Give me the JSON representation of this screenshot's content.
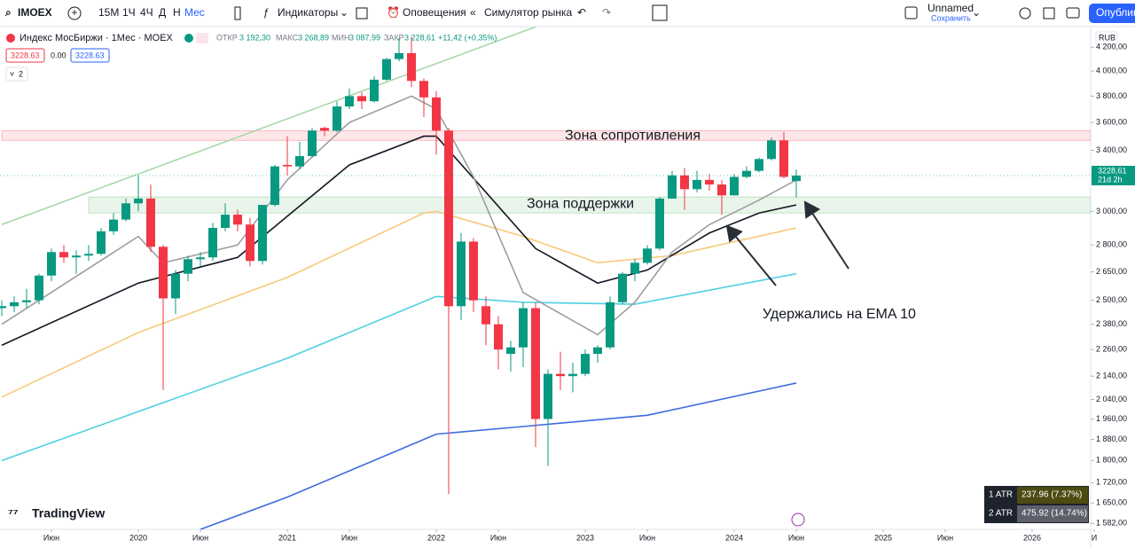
{
  "toolbar": {
    "symbol": "IMOEX",
    "intervals": [
      "15М",
      "1Ч",
      "4Ч",
      "Д",
      "Н",
      "Мес"
    ],
    "indicators": "Индикаторы",
    "alerts": "Оповещения",
    "replay": "Симулятор рынка",
    "layout_name": "Unnamed",
    "save": "Сохранить",
    "publish": "Опубликовать"
  },
  "legend": {
    "title": "Индекс МосБиржи · 1Мес · MOEX",
    "open_label": "ОТКР",
    "open": "3 192,30",
    "high_label": "МАКС",
    "high": "3 268,89",
    "low_label": "МИН",
    "low": "3 087,99",
    "close_label": "ЗАКР",
    "close": "3 228,61",
    "change": "+11,42 (+0,35%)",
    "bid": "3228.63",
    "spread": "0.00",
    "ask": "3228.63",
    "collapsed_count": "2"
  },
  "currency": "RUB",
  "watermark": "TradingView",
  "chart_data": {
    "type": "candlestick",
    "log_scale": true,
    "up_color": "#089981",
    "down_color": "#f23645",
    "x": [
      "2019-02",
      "2019-03",
      "2019-04",
      "2019-05",
      "2019-06",
      "2019-07",
      "2019-08",
      "2019-09",
      "2019-10",
      "2019-11",
      "2019-12",
      "2020-01",
      "2020-02",
      "2020-03",
      "2020-04",
      "2020-05",
      "2020-06",
      "2020-07",
      "2020-08",
      "2020-09",
      "2020-10",
      "2020-11",
      "2020-12",
      "2021-01",
      "2021-02",
      "2021-03",
      "2021-04",
      "2021-05",
      "2021-06",
      "2021-07",
      "2021-08",
      "2021-09",
      "2021-10",
      "2021-11",
      "2021-12",
      "2022-01",
      "2022-02",
      "2022-03",
      "2022-04",
      "2022-05",
      "2022-06",
      "2022-07",
      "2022-08",
      "2022-09",
      "2022-10",
      "2022-11",
      "2022-12",
      "2023-01",
      "2023-02",
      "2023-03",
      "2023-04",
      "2023-05",
      "2023-06",
      "2023-07",
      "2023-08",
      "2023-09",
      "2023-10",
      "2023-11",
      "2023-12",
      "2024-01",
      "2024-02",
      "2024-03",
      "2024-04",
      "2024-05",
      "2024-06"
    ],
    "open": [
      2460,
      2470,
      2490,
      2500,
      2630,
      2760,
      2730,
      2740,
      2750,
      2880,
      2950,
      3050,
      3080,
      2790,
      2510,
      2640,
      2720,
      2730,
      2900,
      2980,
      2920,
      2710,
      3040,
      3300,
      3290,
      3360,
      3560,
      3540,
      3720,
      3800,
      3760,
      3930,
      4100,
      4150,
      3920,
      3790,
      3540,
      2470,
      2820,
      2470,
      2380,
      2240,
      2270,
      2460,
      1960,
      2150,
      2140,
      2150,
      2240,
      2270,
      2490,
      2640,
      2700,
      2780,
      3080,
      3230,
      3140,
      3200,
      3170,
      3100,
      3220,
      3260,
      3340,
      3470,
      3192.3
    ],
    "high": [
      2500,
      2520,
      2560,
      2640,
      2780,
      2800,
      2770,
      2800,
      2900,
      2990,
      3080,
      3230,
      3170,
      2800,
      2660,
      2740,
      2760,
      2930,
      3050,
      3010,
      2960,
      3040,
      3300,
      3500,
      3460,
      3560,
      3570,
      3760,
      3860,
      3830,
      3960,
      4110,
      4280,
      4290,
      3940,
      3840,
      3560,
      2870,
      2840,
      2520,
      2420,
      2300,
      2490,
      2490,
      2170,
      2250,
      2200,
      2260,
      2280,
      2520,
      2650,
      2720,
      2800,
      3090,
      3260,
      3280,
      3260,
      3240,
      3200,
      3240,
      3290,
      3350,
      3490,
      3530,
      3268.89
    ],
    "low": [
      2420,
      2440,
      2460,
      2480,
      2600,
      2700,
      2640,
      2710,
      2740,
      2860,
      2940,
      3000,
      2760,
      2080,
      2430,
      2600,
      2680,
      2710,
      2880,
      2880,
      2680,
      2690,
      3030,
      3230,
      3270,
      3350,
      3500,
      3530,
      3700,
      3700,
      3750,
      3920,
      4080,
      3870,
      3640,
      3370,
      1680,
      2400,
      2440,
      2280,
      2170,
      2160,
      2180,
      1850,
      1780,
      2080,
      2070,
      2140,
      2200,
      2260,
      2480,
      2600,
      2690,
      2770,
      3080,
      3010,
      3120,
      3130,
      2980,
      3100,
      3210,
      3250,
      3330,
      3210,
      3087.99
    ],
    "close": [
      2470,
      2490,
      2500,
      2630,
      2760,
      2730,
      2740,
      2750,
      2880,
      2950,
      3050,
      3080,
      2790,
      2510,
      2640,
      2720,
      2730,
      2900,
      2980,
      2920,
      2710,
      3040,
      3290,
      3290,
      3360,
      3540,
      3540,
      3720,
      3800,
      3760,
      3930,
      4100,
      4150,
      3920,
      3790,
      3540,
      2470,
      2820,
      2500,
      2380,
      2260,
      2270,
      2460,
      1960,
      2150,
      2140,
      2150,
      2240,
      2270,
      2490,
      2640,
      2700,
      2780,
      3080,
      3230,
      3140,
      3200,
      3170,
      3100,
      3220,
      3260,
      3340,
      3470,
      3220,
      3228.61
    ],
    "ylim": [
      1563,
      4382
    ],
    "yticks": [
      {
        "value": 4200,
        "label": "4 200,00"
      },
      {
        "value": 4000,
        "label": "4 000,00"
      },
      {
        "value": 3800,
        "label": "3 800,00"
      },
      {
        "value": 3600,
        "label": "3 600,00"
      },
      {
        "value": 3400,
        "label": "3 400,00"
      },
      {
        "value": 3000,
        "label": "3 000,00"
      },
      {
        "value": 2800,
        "label": "2 800,00"
      },
      {
        "value": 2650,
        "label": "2 650,00"
      },
      {
        "value": 2500,
        "label": "2 500,00"
      },
      {
        "value": 2380,
        "label": "2 380,00"
      },
      {
        "value": 2260,
        "label": "2 260,00"
      },
      {
        "value": 2140,
        "label": "2 140,00"
      },
      {
        "value": 2040,
        "label": "2 040,00"
      },
      {
        "value": 1960,
        "label": "1 960,00"
      },
      {
        "value": 1880,
        "label": "1 880,00"
      },
      {
        "value": 1800,
        "label": "1 800,00"
      },
      {
        "value": 1720,
        "label": "1 720,00"
      },
      {
        "value": 1650,
        "label": "1 650,00"
      },
      {
        "value": 1582,
        "label": "1 582,00"
      }
    ],
    "xticks": [
      {
        "value": "2019-06",
        "label": "Июн"
      },
      {
        "value": "2020-01",
        "label": "2020"
      },
      {
        "value": "2020-06",
        "label": "Июн"
      },
      {
        "value": "2021-01",
        "label": "2021"
      },
      {
        "value": "2021-06",
        "label": "Июн"
      },
      {
        "value": "2022-01",
        "label": "2022"
      },
      {
        "value": "2022-06",
        "label": "Июн"
      },
      {
        "value": "2023-01",
        "label": "2023"
      },
      {
        "value": "2023-06",
        "label": "Июн"
      },
      {
        "value": "2024-01",
        "label": "2024"
      },
      {
        "value": "2024-06",
        "label": "Июн"
      },
      {
        "value": "2025-01",
        "label": "2025"
      },
      {
        "value": "2025-06",
        "label": "Июн"
      },
      {
        "value": "2026-01",
        "label": "2026"
      },
      {
        "value": "2026-06",
        "label": "И"
      }
    ],
    "lines": [
      {
        "color": "#a5d6a7",
        "x": [
          "2019-02",
          "2022-09"
        ],
        "values": [
          2920,
          4380
        ]
      },
      {
        "color": "#3d6be0",
        "x": [
          "2020-06",
          "2021-01",
          "2022-01",
          "2022-08",
          "2023-06",
          "2024-06"
        ],
        "values": [
          1563,
          1670,
          1900,
          1930,
          1975,
          2110
        ]
      },
      {
        "color": "#4dd0e1",
        "x": [
          "2019-02",
          "2020-01",
          "2021-01",
          "2022-01",
          "2022-08",
          "2023-05",
          "2024-06"
        ],
        "values": [
          1800,
          1990,
          2220,
          2520,
          2490,
          2480,
          2640
        ]
      },
      {
        "color": "#f7c97a",
        "x": [
          "2019-02",
          "2020-01",
          "2021-01",
          "2021-12",
          "2022-01",
          "2022-08",
          "2023-02",
          "2023-08",
          "2024-06"
        ],
        "values": [
          2050,
          2340,
          2620,
          2990,
          3000,
          2850,
          2700,
          2740,
          2900
        ]
      },
      {
        "color": "#131722",
        "x": [
          "2019-02",
          "2020-01",
          "2020-09",
          "2021-01",
          "2021-06",
          "2021-12",
          "2022-01",
          "2022-05",
          "2022-09",
          "2023-02",
          "2023-06",
          "2023-11",
          "2024-03",
          "2024-06"
        ],
        "values": [
          2280,
          2590,
          2730,
          2970,
          3300,
          3500,
          3500,
          3120,
          2780,
          2590,
          2660,
          2870,
          2990,
          3040
        ]
      },
      {
        "color": "#9e9e9e",
        "x": [
          "2019-02",
          "2020-01",
          "2020-03",
          "2020-09",
          "2021-01",
          "2021-06",
          "2021-11",
          "2022-01",
          "2022-04",
          "2022-08",
          "2023-02",
          "2023-05",
          "2023-08",
          "2023-11",
          "2024-03",
          "2024-06"
        ],
        "values": [
          2380,
          2850,
          2700,
          2800,
          3200,
          3600,
          3800,
          3700,
          3220,
          2540,
          2330,
          2490,
          2760,
          2920,
          3070,
          3200
        ]
      }
    ],
    "zones": [
      {
        "label": "Зона сопротивления",
        "from": "2019-02",
        "range": [
          3470,
          3540
        ],
        "color": "#f23645"
      },
      {
        "label": "Зона поддержки",
        "from": "2019-09",
        "range": [
          2990,
          3090
        ],
        "color": "#4caf50"
      }
    ],
    "annotation": "Удержались на EMA 10",
    "last_price": {
      "label": "3228,61",
      "countdown": "21d 2h"
    }
  },
  "atr": [
    {
      "name": "1 ATR",
      "value": "237.96 (7.37%)"
    },
    {
      "name": "2 ATR",
      "value": "475.92 (14.74%)"
    }
  ]
}
